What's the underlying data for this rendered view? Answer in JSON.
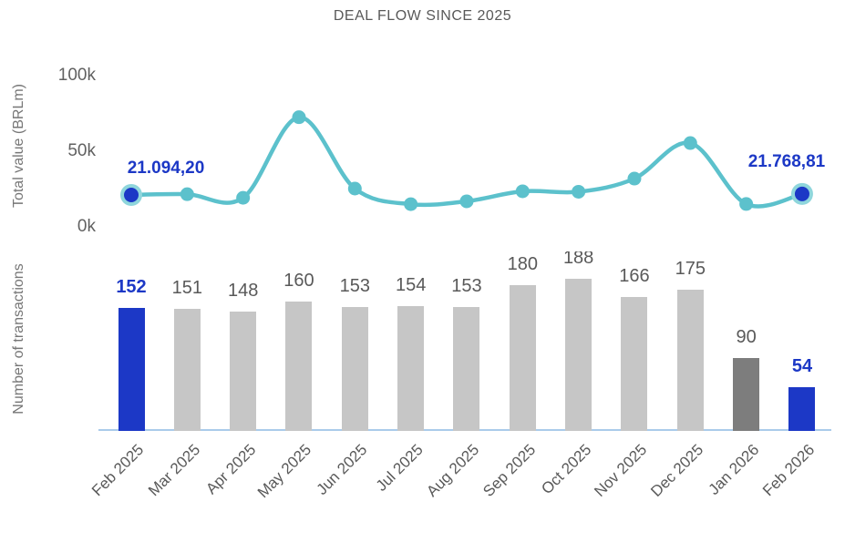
{
  "title": "DEAL FLOW SINCE 2025",
  "colors": {
    "accent_blue": "#1C38C6",
    "teal_line": "#5CC1CC",
    "teal_ring": "#8FD6DC",
    "bar_gray": "#C6C6C6",
    "bar_dark_gray": "#7D7D7D",
    "label_gray": "#595959",
    "baseline_blue": "#AACBEA"
  },
  "chart_data": {
    "type": "combo",
    "title": "DEAL FLOW SINCE 2025",
    "categories": [
      "Feb 2025",
      "Mar 2025",
      "Apr 2025",
      "May 2025",
      "Jun 2025",
      "Jul 2025",
      "Aug 2025",
      "Sep 2025",
      "Oct 2025",
      "Nov 2025",
      "Dec 2025",
      "Jan 2026",
      "Feb 2026"
    ],
    "line": {
      "name": "Total value (BRLm)",
      "type": "line",
      "ylabel": "Total value (BRLm)",
      "ylim": [
        0,
        100000
      ],
      "yticks": [
        {
          "label": "100k",
          "value": 100000
        },
        {
          "label": "50k",
          "value": 50000
        },
        {
          "label": "0k",
          "value": 0
        }
      ],
      "values": [
        21094.2,
        21600,
        19200,
        72500,
        25300,
        15000,
        16900,
        23500,
        23200,
        31900,
        55400,
        15100,
        21768.81
      ],
      "point_labels": {
        "first": "21.094,20",
        "last": "21.768,81"
      }
    },
    "bars": {
      "name": "Number of transactions",
      "type": "bar",
      "ylabel": "Number of transactions",
      "values": [
        152,
        151,
        148,
        160,
        153,
        154,
        153,
        180,
        188,
        166,
        175,
        90,
        54
      ],
      "styles": [
        "blue",
        "gray",
        "gray",
        "gray",
        "gray",
        "gray",
        "gray",
        "gray",
        "gray",
        "gray",
        "gray",
        "darkgray",
        "blue"
      ]
    }
  }
}
